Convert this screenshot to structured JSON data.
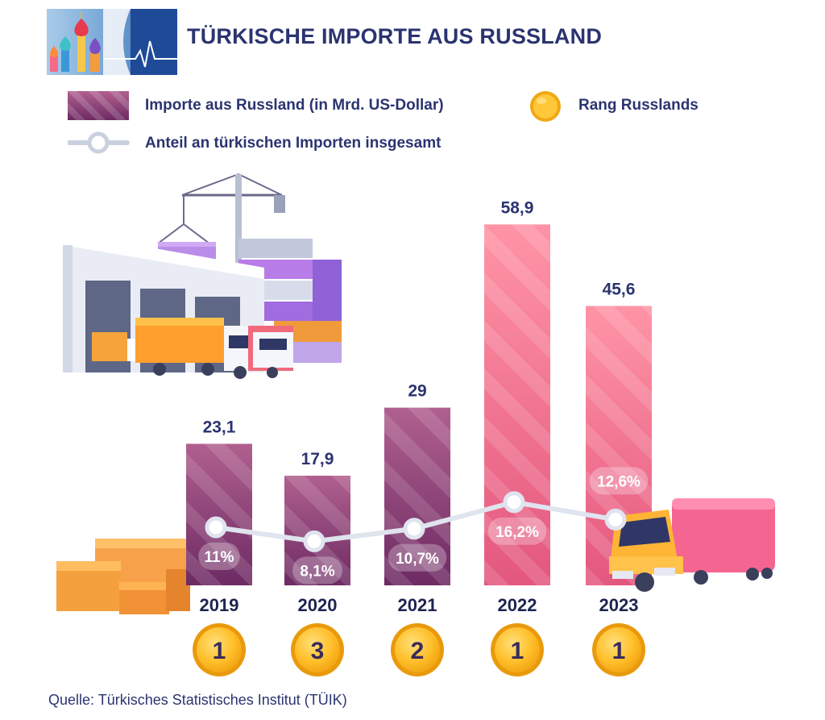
{
  "header": {
    "title": "TÜRKISCHE IMPORTE AUS RUSSLAND"
  },
  "legend": {
    "bars_label": "Importe aus Russland (in Mrd. US-Dollar)",
    "line_label": "Anteil an türkischen Importen insgesamt",
    "rank_label": "Rang Russlands"
  },
  "source": "Quelle: Türkisches Statistisches Institut (TÜIK)",
  "colors": {
    "title": "#2b3470",
    "bar_purple_top": "#b0608f",
    "bar_purple_bottom": "#6d2a63",
    "bar_pink_top": "#ff8fa3",
    "bar_pink_bottom": "#e85a80",
    "line": "#dfe4ef",
    "coin": "#f7b718",
    "coin_text": "#3a2b5a"
  },
  "chart_data": {
    "type": "bar",
    "categories": [
      "2019",
      "2020",
      "2021",
      "2022",
      "2023"
    ],
    "series": [
      {
        "name": "Importe aus Russland (in Mrd. US-Dollar)",
        "type": "bar",
        "values": [
          23.1,
          17.9,
          29,
          58.9,
          45.6
        ],
        "labels": [
          "23,1",
          "17,9",
          "29",
          "58,9",
          "45,6"
        ]
      },
      {
        "name": "Anteil an türkischen Importen insgesamt",
        "type": "line",
        "values": [
          11,
          8.1,
          10.7,
          16.2,
          12.6
        ],
        "labels": [
          "11%",
          "8,1%",
          "10,7%",
          "16,2%",
          "12,6%"
        ]
      },
      {
        "name": "Rang Russlands",
        "type": "rank",
        "values": [
          1,
          3,
          2,
          1,
          1
        ],
        "labels": [
          "1",
          "3",
          "2",
          "1",
          "1"
        ]
      }
    ]
  }
}
